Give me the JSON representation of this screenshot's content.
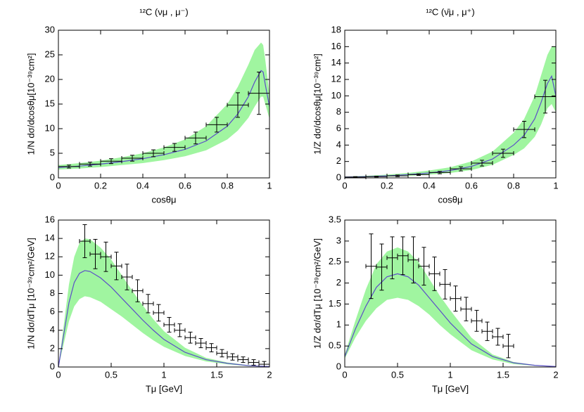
{
  "chart_data": [
    {
      "type": "line",
      "title": "¹²C (νμ , μ⁻)",
      "xlabel": "cosθμ",
      "ylabel": "1/N dσ/dcosθμ[10⁻³⁹cm²]",
      "xlim": [
        0,
        1
      ],
      "ylim": [
        0,
        30
      ],
      "xticks": [
        0,
        0.2,
        0.4,
        0.6,
        0.8,
        1
      ],
      "yticks": [
        0,
        5,
        10,
        15,
        20,
        25,
        30
      ],
      "band": {
        "color": "#a0f5a0",
        "x": [
          0,
          0.1,
          0.2,
          0.3,
          0.4,
          0.5,
          0.6,
          0.7,
          0.8,
          0.85,
          0.9,
          0.93,
          0.96,
          0.97,
          0.98,
          1.0
        ],
        "upper": [
          2.6,
          3.0,
          3.5,
          4.2,
          5.0,
          6.2,
          7.8,
          10.5,
          15,
          18.5,
          23,
          26,
          27.5,
          27,
          24,
          17
        ],
        "lower": [
          1.7,
          1.9,
          2.2,
          2.6,
          3.0,
          3.6,
          4.4,
          5.6,
          7.8,
          9.6,
          12.2,
          14.5,
          16.5,
          16.5,
          15,
          12
        ]
      },
      "curve": {
        "color": "#5b4fc7",
        "x": [
          0,
          0.1,
          0.2,
          0.3,
          0.4,
          0.5,
          0.6,
          0.7,
          0.8,
          0.85,
          0.9,
          0.93,
          0.96,
          0.97,
          0.98,
          1.0
        ],
        "y": [
          2.1,
          2.4,
          2.8,
          3.3,
          3.9,
          4.7,
          5.8,
          7.5,
          10.5,
          13,
          16.5,
          19.5,
          21.8,
          21.5,
          19,
          14.5
        ]
      },
      "points": {
        "color": "#000000",
        "x": [
          0.05,
          0.15,
          0.25,
          0.35,
          0.45,
          0.55,
          0.65,
          0.75,
          0.85,
          0.95
        ],
        "xerr": [
          0.05,
          0.05,
          0.05,
          0.05,
          0.05,
          0.05,
          0.05,
          0.05,
          0.05,
          0.05
        ],
        "y": [
          2.3,
          2.8,
          3.4,
          4.0,
          5.0,
          6.2,
          8.1,
          10.8,
          14.8,
          17.2
        ],
        "yerr": [
          0.3,
          0.4,
          0.5,
          0.6,
          0.7,
          0.8,
          1.2,
          1.5,
          2.5,
          4.3
        ]
      }
    },
    {
      "type": "line",
      "title": "¹²C (ν̄μ , μ⁺)",
      "xlabel": "cosθμ",
      "ylabel": "1/Z dσ/dcosθμ[10⁻³⁹cm²]",
      "xlim": [
        0,
        1
      ],
      "ylim": [
        0,
        18
      ],
      "xticks": [
        0,
        0.2,
        0.4,
        0.6,
        0.8,
        1
      ],
      "yticks": [
        0,
        2,
        4,
        6,
        8,
        10,
        12,
        14,
        16,
        18
      ],
      "band": {
        "color": "#a0f5a0",
        "x": [
          0,
          0.1,
          0.2,
          0.3,
          0.4,
          0.5,
          0.6,
          0.7,
          0.8,
          0.85,
          0.9,
          0.93,
          0.96,
          0.98,
          1.0
        ],
        "upper": [
          0.15,
          0.25,
          0.4,
          0.6,
          0.9,
          1.3,
          2,
          3.2,
          5.5,
          7.2,
          10,
          12.5,
          15,
          16,
          16
        ],
        "lower": [
          0.05,
          0.1,
          0.15,
          0.25,
          0.4,
          0.6,
          0.95,
          1.6,
          2.8,
          3.6,
          5,
          6.5,
          8.5,
          9,
          8
        ]
      },
      "curve": {
        "color": "#5b4fc7",
        "x": [
          0,
          0.1,
          0.2,
          0.3,
          0.4,
          0.5,
          0.6,
          0.7,
          0.8,
          0.85,
          0.9,
          0.93,
          0.96,
          0.98,
          1.0
        ],
        "y": [
          0.1,
          0.15,
          0.25,
          0.4,
          0.6,
          0.9,
          1.4,
          2.3,
          4,
          5.2,
          7.2,
          9.2,
          11.5,
          12.4,
          10
        ]
      },
      "points": {
        "color": "#000000",
        "x": [
          0.05,
          0.15,
          0.25,
          0.35,
          0.45,
          0.55,
          0.65,
          0.75,
          0.85,
          0.95
        ],
        "xerr": [
          0.05,
          0.05,
          0.05,
          0.05,
          0.05,
          0.05,
          0.05,
          0.05,
          0.05,
          0.05
        ],
        "y": [
          0.1,
          0.15,
          0.25,
          0.4,
          0.65,
          1.1,
          1.8,
          3.0,
          5.9,
          9.9
        ],
        "yerr": [
          0.05,
          0.05,
          0.1,
          0.1,
          0.15,
          0.25,
          0.35,
          0.5,
          1.0,
          2.0
        ]
      }
    },
    {
      "type": "line",
      "xlabel": "Tμ [GeV]",
      "ylabel": "1/N dσ/dTμ [10⁻³⁹cm²/GeV]",
      "xlim": [
        0,
        2
      ],
      "ylim": [
        0,
        16
      ],
      "xticks": [
        0,
        0.5,
        1,
        1.5,
        2
      ],
      "yticks": [
        0,
        2,
        4,
        6,
        8,
        10,
        12,
        14,
        16
      ],
      "band": {
        "color": "#a0f5a0",
        "x": [
          0,
          0.05,
          0.1,
          0.15,
          0.2,
          0.25,
          0.3,
          0.4,
          0.5,
          0.6,
          0.7,
          0.8,
          0.9,
          1.0,
          1.2,
          1.4,
          1.6,
          1.8,
          2.0
        ],
        "upper": [
          0,
          4.5,
          9,
          12,
          13.5,
          14,
          13.9,
          13,
          11.7,
          10,
          8.3,
          6.7,
          5.2,
          3.9,
          2.1,
          1.0,
          0.5,
          0.2,
          0.07
        ],
        "lower": [
          0,
          2.5,
          5,
          6.6,
          7.4,
          7.7,
          7.6,
          7.1,
          6.3,
          5.5,
          4.6,
          3.7,
          2.9,
          2.2,
          1.2,
          0.6,
          0.3,
          0.1,
          0.03
        ]
      },
      "curve": {
        "color": "#5b4fc7",
        "x": [
          0,
          0.05,
          0.1,
          0.15,
          0.2,
          0.25,
          0.3,
          0.4,
          0.5,
          0.6,
          0.7,
          0.8,
          0.9,
          1.0,
          1.2,
          1.4,
          1.6,
          1.8,
          2.0
        ],
        "y": [
          0,
          3.5,
          7,
          9.2,
          10.2,
          10.5,
          10.4,
          9.7,
          8.7,
          7.5,
          6.3,
          5.1,
          4.0,
          3.0,
          1.6,
          0.8,
          0.4,
          0.15,
          0.05
        ]
      },
      "points": {
        "color": "#000000",
        "x": [
          0.25,
          0.35,
          0.45,
          0.55,
          0.65,
          0.75,
          0.85,
          0.95,
          1.05,
          1.15,
          1.25,
          1.35,
          1.45,
          1.55,
          1.65,
          1.75,
          1.85,
          1.95
        ],
        "xerr": [
          0.05,
          0.05,
          0.05,
          0.05,
          0.05,
          0.05,
          0.05,
          0.05,
          0.05,
          0.05,
          0.05,
          0.05,
          0.05,
          0.05,
          0.05,
          0.05,
          0.05,
          0.05
        ],
        "y": [
          13.7,
          12.3,
          12.0,
          11.0,
          9.8,
          8.3,
          6.9,
          5.9,
          4.6,
          4.0,
          3.2,
          2.6,
          2.1,
          1.5,
          1.1,
          0.8,
          0.5,
          0.3
        ],
        "yerr": [
          1.8,
          1.6,
          1.6,
          1.5,
          1.4,
          1.2,
          1.0,
          0.9,
          0.8,
          0.7,
          0.6,
          0.5,
          0.45,
          0.4,
          0.35,
          0.3,
          0.3,
          0.3
        ]
      }
    },
    {
      "type": "line",
      "xlabel": "Tμ [GeV]",
      "ylabel": "1/Z dσ/dTμ [10⁻³⁹cm²/GeV]",
      "xlim": [
        0,
        2
      ],
      "ylim": [
        0,
        3.5
      ],
      "xticks": [
        0,
        0.5,
        1,
        1.5,
        2
      ],
      "yticks": [
        0,
        0.5,
        1,
        1.5,
        2,
        2.5,
        3,
        3.5
      ],
      "band": {
        "color": "#a0f5a0",
        "x": [
          0,
          0.1,
          0.2,
          0.3,
          0.4,
          0.5,
          0.6,
          0.7,
          0.8,
          0.9,
          1.0,
          1.2,
          1.4,
          1.6,
          1.8,
          2.0
        ],
        "upper": [
          0.3,
          1.1,
          1.85,
          2.45,
          2.75,
          2.85,
          2.75,
          2.5,
          2.1,
          1.7,
          1.35,
          0.7,
          0.3,
          0.12,
          0.05,
          0.01
        ],
        "lower": [
          0.2,
          0.7,
          1.1,
          1.4,
          1.6,
          1.65,
          1.6,
          1.45,
          1.25,
          1.0,
          0.78,
          0.4,
          0.18,
          0.07,
          0.03,
          0.01
        ]
      },
      "curve": {
        "color": "#5b4fc7",
        "x": [
          0,
          0.1,
          0.2,
          0.3,
          0.4,
          0.5,
          0.6,
          0.7,
          0.8,
          0.9,
          1.0,
          1.2,
          1.4,
          1.6,
          1.8,
          2.0
        ],
        "y": [
          0.25,
          0.9,
          1.45,
          1.9,
          2.15,
          2.22,
          2.15,
          1.95,
          1.65,
          1.35,
          1.05,
          0.55,
          0.25,
          0.1,
          0.04,
          0.01
        ]
      },
      "points": {
        "color": "#000000",
        "x": [
          0.25,
          0.35,
          0.45,
          0.55,
          0.65,
          0.75,
          0.85,
          0.95,
          1.05,
          1.15,
          1.25,
          1.35,
          1.45,
          1.55
        ],
        "xerr": [
          0.05,
          0.05,
          0.05,
          0.05,
          0.05,
          0.05,
          0.05,
          0.05,
          0.05,
          0.05,
          0.05,
          0.05,
          0.05,
          0.05
        ],
        "y": [
          2.4,
          2.38,
          2.6,
          2.65,
          2.55,
          2.4,
          2.22,
          1.97,
          1.63,
          1.38,
          1.1,
          0.85,
          0.72,
          0.5
        ],
        "yerr": [
          0.77,
          0.55,
          0.5,
          0.45,
          0.55,
          0.45,
          0.4,
          0.35,
          0.3,
          0.28,
          0.25,
          0.22,
          0.2,
          0.28
        ]
      }
    }
  ]
}
